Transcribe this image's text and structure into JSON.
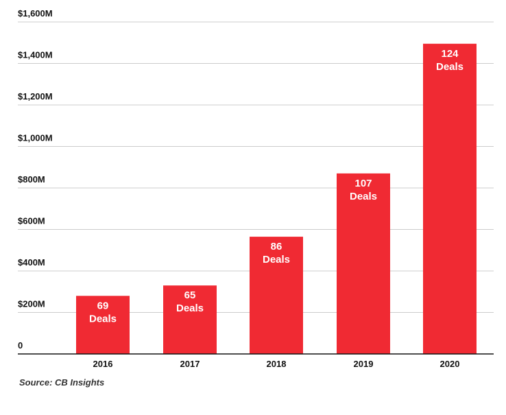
{
  "chart_data": {
    "type": "bar",
    "categories": [
      "2016",
      "2017",
      "2018",
      "2019",
      "2020"
    ],
    "values": [
      280,
      330,
      565,
      870,
      1495
    ],
    "data_labels": [
      [
        "69",
        "Deals"
      ],
      [
        "65",
        "Deals"
      ],
      [
        "86",
        "Deals"
      ],
      [
        "107",
        "Deals"
      ],
      [
        "124",
        "Deals"
      ]
    ],
    "ylim": [
      0,
      1600
    ],
    "yticks": [
      0,
      200,
      400,
      600,
      800,
      1000,
      1200,
      1400,
      1600
    ],
    "ytick_labels": [
      "0",
      "$200M",
      "$400M",
      "$600M",
      "$800M",
      "$1,000M",
      "$1,200M",
      "$1,400M",
      "$1,600M"
    ],
    "title": "",
    "xlabel": "",
    "ylabel": "",
    "grid": true,
    "bar_color": "#f02a33",
    "grid_color": "#cccccc",
    "axis_color": "#111111"
  },
  "source": "Source: CB Insights"
}
